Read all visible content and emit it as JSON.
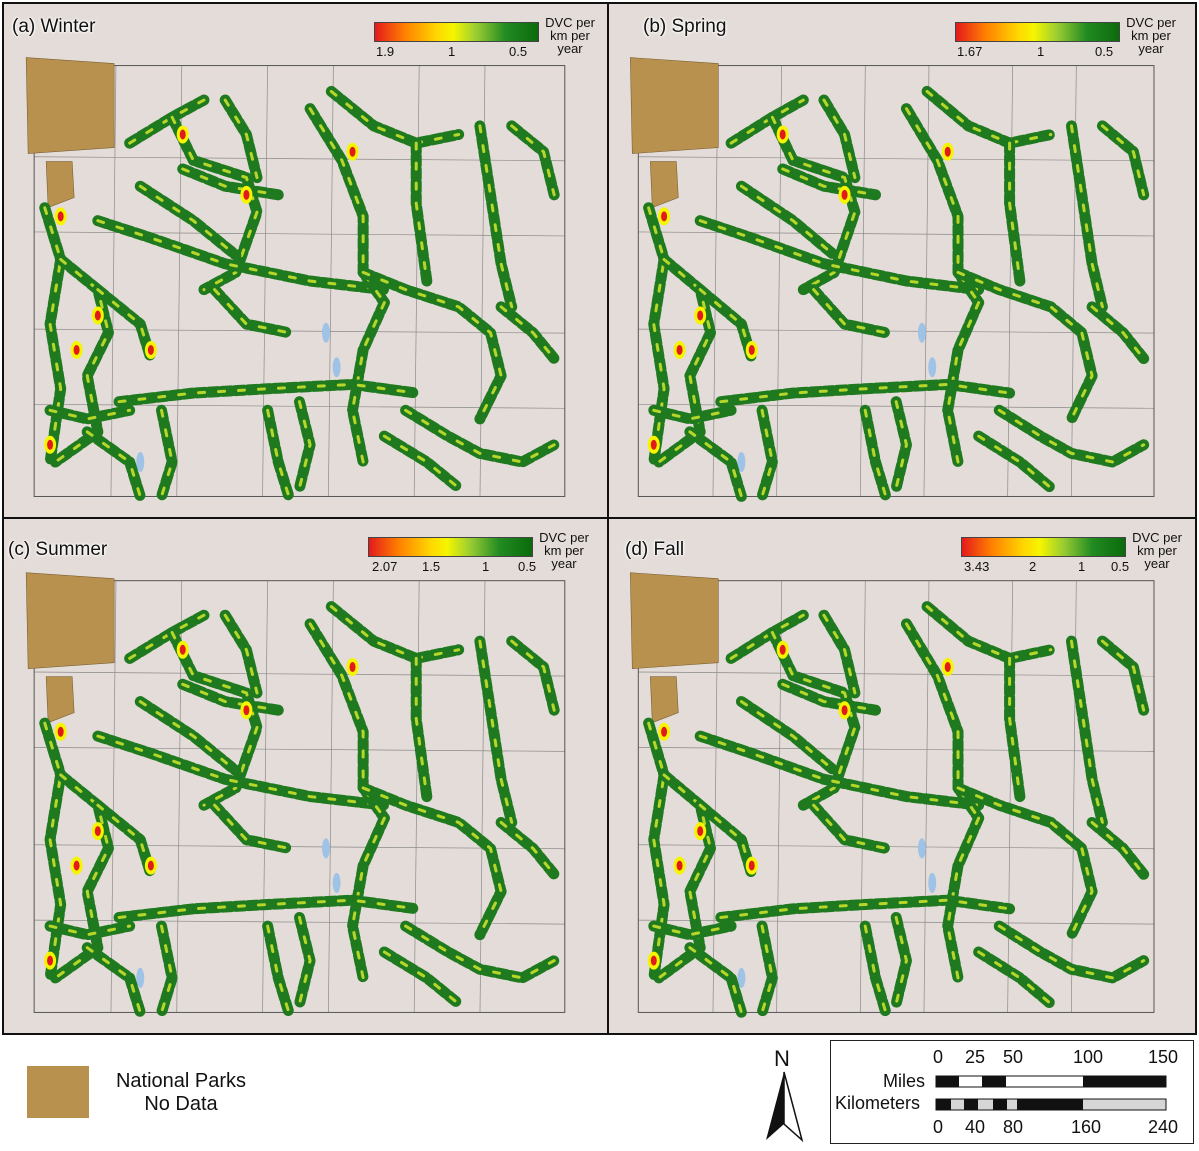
{
  "panels": [
    {
      "title": "(a) Winter",
      "ticks": [
        "1.9",
        "1",
        "0.5"
      ],
      "unit": [
        "DVC per",
        "km per",
        "year"
      ]
    },
    {
      "title": "(b) Spring",
      "ticks": [
        "1.67",
        "1",
        "0.5"
      ],
      "unit": [
        "DVC per",
        "km per",
        "year"
      ]
    },
    {
      "title": "(c) Summer",
      "ticks": [
        "2.07",
        "1.5",
        "1",
        "0.5"
      ],
      "unit": [
        "DVC per",
        "km per",
        "year"
      ]
    },
    {
      "title": "(d) Fall",
      "ticks": [
        "3.43",
        "2",
        "1",
        "0.5"
      ],
      "unit": [
        "DVC per",
        "km per",
        "year"
      ]
    }
  ],
  "legend": {
    "line1": "National Parks",
    "line2": "No Data",
    "color": "#b8914f"
  },
  "north_arrow": {
    "label": "N"
  },
  "scale_bar": {
    "miles_label": "Miles",
    "km_label": "Kilometers",
    "miles_ticks": [
      "0",
      "25",
      "50",
      "100",
      "150"
    ],
    "km_ticks": [
      "0",
      "40",
      "80",
      "160",
      "240"
    ]
  },
  "colors": {
    "high": "#e31a1c",
    "mid": "#f5f500",
    "low": "#0b6b0b",
    "background": "#e4dcd8",
    "water": "#9ec3e6"
  }
}
